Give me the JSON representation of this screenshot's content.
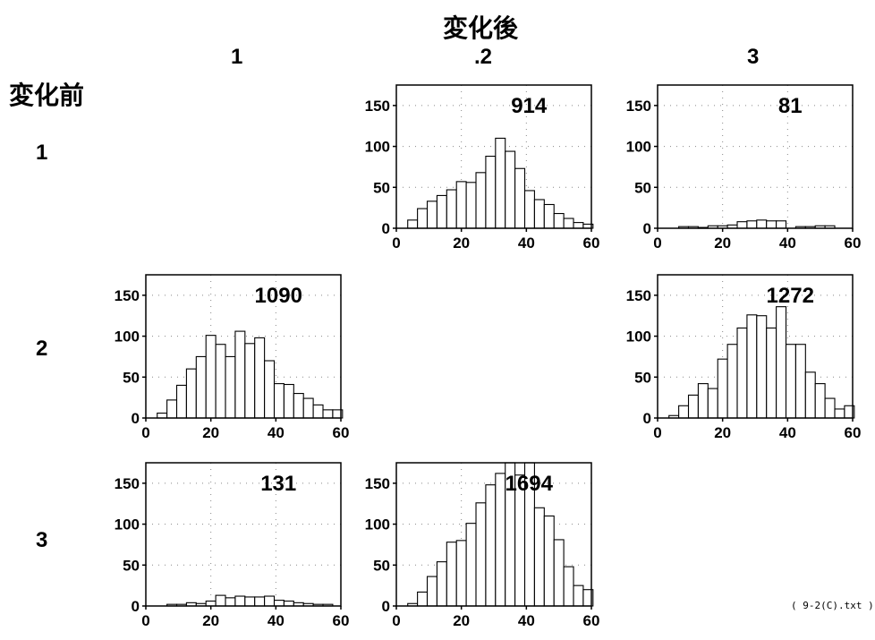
{
  "header": {
    "after_label": "変化後",
    "before_label": "変化前",
    "col_labels": [
      "1",
      ".2",
      "3"
    ],
    "row_labels": [
      "1",
      "2",
      "3"
    ]
  },
  "footnote": "( 9-2(C).txt )",
  "chart_data": [
    {
      "type": "bar",
      "row": "1",
      "col": "2",
      "count_label": "914",
      "x_bin_centers": [
        5,
        8,
        11,
        14,
        17,
        20,
        23,
        26,
        29,
        32,
        35,
        38,
        41,
        44,
        47,
        50,
        53,
        56,
        59
      ],
      "values": [
        10,
        24,
        33,
        40,
        47,
        57,
        56,
        68,
        88,
        110,
        94,
        73,
        46,
        35,
        29,
        18,
        12,
        7,
        5
      ],
      "xlim": [
        0,
        60
      ],
      "ylim": [
        0,
        175
      ],
      "x_ticks": [
        0,
        20,
        40,
        60
      ],
      "y_ticks": [
        0,
        50,
        100,
        150
      ],
      "grid": "dotted"
    },
    {
      "type": "bar",
      "row": "1",
      "col": "3",
      "count_label": "81",
      "x_bin_centers": [
        5,
        8,
        11,
        14,
        17,
        20,
        23,
        26,
        29,
        32,
        35,
        38,
        41,
        44,
        47,
        50,
        53,
        56,
        59
      ],
      "values": [
        0,
        2,
        2,
        1,
        3,
        3,
        4,
        8,
        9,
        10,
        9,
        9,
        0,
        2,
        2,
        3,
        3,
        0,
        0
      ],
      "xlim": [
        0,
        60
      ],
      "ylim": [
        0,
        175
      ],
      "x_ticks": [
        0,
        20,
        40,
        60
      ],
      "y_ticks": [
        0,
        50,
        100,
        150
      ],
      "grid": "dotted"
    },
    {
      "type": "bar",
      "row": "2",
      "col": "1",
      "count_label": "1090",
      "x_bin_centers": [
        5,
        8,
        11,
        14,
        17,
        20,
        23,
        26,
        29,
        32,
        35,
        38,
        41,
        44,
        47,
        50,
        53,
        56,
        59
      ],
      "values": [
        6,
        22,
        40,
        60,
        75,
        101,
        90,
        75,
        106,
        91,
        98,
        70,
        42,
        41,
        30,
        24,
        16,
        10,
        10
      ],
      "xlim": [
        0,
        60
      ],
      "ylim": [
        0,
        175
      ],
      "x_ticks": [
        0,
        20,
        40,
        60
      ],
      "y_ticks": [
        0,
        50,
        100,
        150
      ],
      "grid": "dotted"
    },
    {
      "type": "bar",
      "row": "2",
      "col": "3",
      "count_label": "1272",
      "x_bin_centers": [
        5,
        8,
        11,
        14,
        17,
        20,
        23,
        26,
        29,
        32,
        35,
        38,
        41,
        44,
        47,
        50,
        53,
        56,
        59
      ],
      "values": [
        3,
        15,
        28,
        42,
        36,
        72,
        90,
        110,
        126,
        125,
        110,
        136,
        90,
        90,
        56,
        42,
        24,
        11,
        15
      ],
      "xlim": [
        0,
        60
      ],
      "ylim": [
        0,
        175
      ],
      "x_ticks": [
        0,
        20,
        40,
        60
      ],
      "y_ticks": [
        0,
        50,
        100,
        150
      ],
      "grid": "dotted"
    },
    {
      "type": "bar",
      "row": "3",
      "col": "1",
      "count_label": "131",
      "x_bin_centers": [
        5,
        8,
        11,
        14,
        17,
        20,
        23,
        26,
        29,
        32,
        35,
        38,
        41,
        44,
        47,
        50,
        53,
        56,
        59
      ],
      "values": [
        0,
        2,
        2,
        4,
        3,
        6,
        13,
        10,
        12,
        11,
        11,
        12,
        7,
        6,
        4,
        3,
        2,
        2,
        0
      ],
      "xlim": [
        0,
        60
      ],
      "ylim": [
        0,
        175
      ],
      "x_ticks": [
        0,
        20,
        40,
        60
      ],
      "y_ticks": [
        0,
        50,
        100,
        150
      ],
      "grid": "dotted"
    },
    {
      "type": "bar",
      "row": "3",
      "col": "2",
      "count_label": "1694",
      "x_bin_centers": [
        5,
        8,
        11,
        14,
        17,
        20,
        23,
        26,
        29,
        32,
        35,
        38,
        41,
        44,
        47,
        50,
        53,
        56,
        59
      ],
      "values": [
        3,
        17,
        36,
        54,
        78,
        80,
        101,
        126,
        148,
        162,
        175,
        160,
        175,
        120,
        110,
        81,
        48,
        25,
        20
      ],
      "xlim": [
        0,
        60
      ],
      "ylim": [
        0,
        175
      ],
      "x_ticks": [
        0,
        20,
        40,
        60
      ],
      "y_ticks": [
        0,
        50,
        100,
        150
      ],
      "grid": "dotted"
    }
  ]
}
